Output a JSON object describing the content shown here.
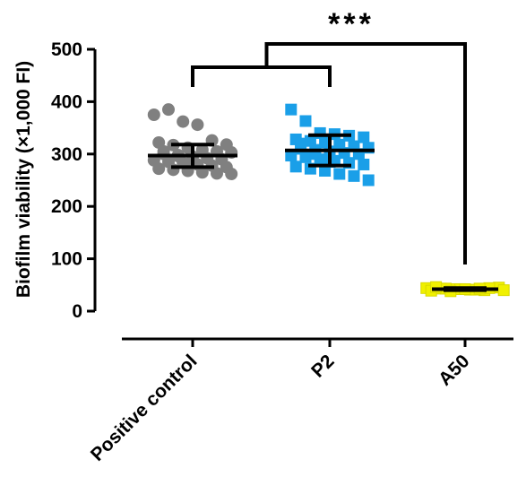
{
  "chart_data": {
    "type": "scatter",
    "title": "",
    "ylabel": "Biofilm viability (×1,000 FI)",
    "xlabel": "",
    "ylim": [
      0,
      500
    ],
    "yticks": [
      "0",
      "100",
      "200",
      "300",
      "400",
      "500"
    ],
    "ytick_values": [
      0,
      100,
      200,
      300,
      400,
      500
    ],
    "categories": [
      "Positive control",
      "P2",
      "A50"
    ],
    "series": [
      {
        "category": "Positive control",
        "marker": "circle",
        "color": "#808080",
        "mean": 297,
        "error_low": 275,
        "error_high": 318,
        "values": [
          375,
          385,
          362,
          356,
          326,
          318,
          322,
          317,
          312,
          308,
          305,
          303,
          300,
          298,
          295,
          292,
          290,
          288,
          285,
          283,
          280,
          278,
          275,
          272,
          270,
          268,
          265,
          263,
          262,
          305,
          296,
          288
        ]
      },
      {
        "category": "P2",
        "marker": "square",
        "color": "#1a9fe8",
        "mean": 307,
        "error_low": 278,
        "error_high": 336,
        "values": [
          385,
          363,
          340,
          338,
          335,
          332,
          328,
          325,
          322,
          318,
          315,
          312,
          310,
          308,
          305,
          302,
          300,
          297,
          294,
          290,
          287,
          283,
          280,
          276,
          272,
          268,
          262,
          258,
          250,
          320,
          300,
          285
        ]
      },
      {
        "category": "A50",
        "marker": "square",
        "color": "#f0f000",
        "mean": 42,
        "error_low": 40,
        "error_high": 44,
        "values": [
          44,
          43,
          42,
          41,
          40,
          45,
          39,
          43,
          42,
          41,
          44,
          40,
          46,
          38,
          42,
          43
        ]
      }
    ],
    "significance": {
      "label": "***",
      "comparison": [
        "Positive control",
        "P2",
        "A50"
      ]
    }
  }
}
